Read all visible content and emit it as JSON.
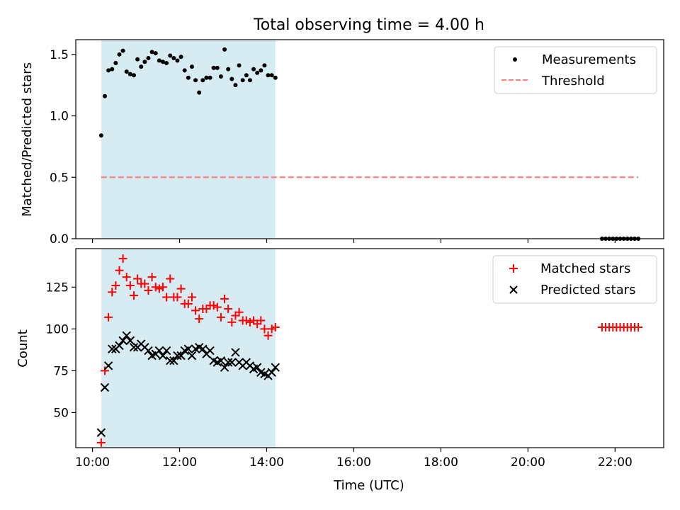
{
  "figure_title": "Total observing time = 4.00 h",
  "colors": {
    "span_fill": "#add8e6",
    "measurement": "#000000",
    "threshold": "#ff7f7f",
    "matched": "#ff0000",
    "predicted": "#000000"
  },
  "chart_data": [
    {
      "type": "scatter",
      "ylabel": "Matched/Predicted stars",
      "xlim": [
        "09:37",
        "23:07"
      ],
      "ylim": [
        0,
        1.62
      ],
      "yticks": [
        0.0,
        0.5,
        1.0,
        1.5
      ],
      "ytick_labels": [
        "0.0",
        "0.5",
        "1.0",
        "1.5"
      ],
      "xticks": [
        "10:00",
        "12:00",
        "14:00",
        "16:00",
        "18:00",
        "20:00",
        "22:00"
      ],
      "shaded_span": [
        "10:12",
        "14:12"
      ],
      "legend_position": "upper right",
      "legend": [
        "Measurements",
        "Threshold"
      ],
      "series": [
        {
          "name": "Measurements",
          "marker": "dot",
          "x": [
            "10:12",
            "10:17",
            "10:22",
            "10:27",
            "10:32",
            "10:37",
            "10:42",
            "10:47",
            "10:52",
            "10:57",
            "11:02",
            "11:07",
            "11:12",
            "11:17",
            "11:22",
            "11:27",
            "11:32",
            "11:37",
            "11:42",
            "11:47",
            "11:52",
            "11:57",
            "12:02",
            "12:07",
            "12:12",
            "12:17",
            "12:22",
            "12:27",
            "12:32",
            "12:37",
            "12:42",
            "12:47",
            "12:52",
            "12:57",
            "13:02",
            "13:07",
            "13:12",
            "13:17",
            "13:22",
            "13:27",
            "13:32",
            "13:37",
            "13:42",
            "13:47",
            "13:52",
            "13:57",
            "14:02",
            "14:07",
            "14:12",
            "21:42",
            "21:47",
            "21:52",
            "21:57",
            "22:02",
            "22:07",
            "22:12",
            "22:17",
            "22:22",
            "22:27",
            "22:32"
          ],
          "y": [
            0.84,
            1.16,
            1.37,
            1.38,
            1.43,
            1.5,
            1.53,
            1.36,
            1.34,
            1.33,
            1.46,
            1.4,
            1.44,
            1.47,
            1.52,
            1.51,
            1.45,
            1.44,
            1.43,
            1.49,
            1.47,
            1.45,
            1.48,
            1.37,
            1.31,
            1.4,
            1.29,
            1.19,
            1.29,
            1.31,
            1.31,
            1.39,
            1.39,
            1.32,
            1.54,
            1.38,
            1.3,
            1.25,
            1.41,
            1.29,
            1.33,
            1.29,
            1.38,
            1.35,
            1.37,
            1.41,
            1.33,
            1.33,
            1.31,
            0,
            0,
            0,
            0,
            0,
            0,
            0,
            0,
            0,
            0,
            0
          ]
        },
        {
          "name": "Threshold",
          "style": "dashed",
          "x": [
            "10:12",
            "22:32"
          ],
          "y": [
            0.5,
            0.5
          ]
        }
      ]
    },
    {
      "type": "scatter",
      "xlabel": "Time (UTC)",
      "ylabel": "Count",
      "xlim": [
        "09:37",
        "23:07"
      ],
      "ylim": [
        29,
        148
      ],
      "yticks": [
        50,
        75,
        100,
        125
      ],
      "ytick_labels": [
        "50",
        "75",
        "100",
        "125"
      ],
      "xticks": [
        "10:00",
        "12:00",
        "14:00",
        "16:00",
        "18:00",
        "20:00",
        "22:00"
      ],
      "shaded_span": [
        "10:12",
        "14:12"
      ],
      "legend_position": "upper right",
      "legend": [
        "Matched stars",
        "Predicted stars"
      ],
      "series": [
        {
          "name": "Matched stars",
          "marker": "plus",
          "x": [
            "10:12",
            "10:17",
            "10:22",
            "10:27",
            "10:32",
            "10:37",
            "10:42",
            "10:47",
            "10:52",
            "10:57",
            "11:02",
            "11:07",
            "11:12",
            "11:17",
            "11:22",
            "11:27",
            "11:32",
            "11:37",
            "11:42",
            "11:47",
            "11:52",
            "11:57",
            "12:02",
            "12:07",
            "12:12",
            "12:17",
            "12:22",
            "12:27",
            "12:32",
            "12:37",
            "12:42",
            "12:47",
            "12:52",
            "12:57",
            "13:02",
            "13:07",
            "13:12",
            "13:17",
            "13:22",
            "13:27",
            "13:32",
            "13:37",
            "13:42",
            "13:47",
            "13:52",
            "13:57",
            "14:02",
            "14:07",
            "14:12",
            "21:42",
            "21:47",
            "21:52",
            "21:57",
            "22:02",
            "22:07",
            "22:12",
            "22:17",
            "22:22",
            "22:27",
            "22:32"
          ],
          "y": [
            32,
            75,
            107,
            122,
            126,
            135,
            142,
            131,
            126,
            120,
            130,
            127,
            127,
            123,
            131,
            125,
            124,
            125,
            119,
            130,
            119,
            119,
            124,
            115,
            115,
            119,
            111,
            106,
            112,
            112,
            114,
            114,
            113,
            107,
            118,
            112,
            104,
            108,
            110,
            105,
            105,
            104,
            105,
            103,
            105,
            100,
            96,
            100,
            101,
            101,
            101,
            101,
            101,
            101,
            101,
            101,
            101,
            101,
            101,
            101
          ]
        },
        {
          "name": "Predicted stars",
          "marker": "x",
          "x": [
            "10:12",
            "10:17",
            "10:22",
            "10:27",
            "10:32",
            "10:37",
            "10:42",
            "10:47",
            "10:52",
            "10:57",
            "11:02",
            "11:07",
            "11:12",
            "11:17",
            "11:22",
            "11:27",
            "11:32",
            "11:37",
            "11:42",
            "11:47",
            "11:52",
            "11:57",
            "12:02",
            "12:07",
            "12:12",
            "12:17",
            "12:22",
            "12:27",
            "12:32",
            "12:37",
            "12:42",
            "12:47",
            "12:52",
            "12:57",
            "13:02",
            "13:07",
            "13:12",
            "13:17",
            "13:22",
            "13:27",
            "13:32",
            "13:37",
            "13:42",
            "13:47",
            "13:52",
            "13:57",
            "14:02",
            "14:07",
            "14:12"
          ],
          "y": [
            38,
            65,
            78,
            88,
            88,
            90,
            93,
            96,
            93,
            89,
            89,
            91,
            89,
            87,
            84,
            85,
            87,
            84,
            87,
            81,
            81,
            84,
            84,
            87,
            88,
            84,
            88,
            89,
            88,
            85,
            87,
            81,
            80,
            81,
            77,
            80,
            80,
            86,
            80,
            78,
            80,
            78,
            76,
            77,
            74,
            73,
            72,
            74,
            77
          ]
        }
      ]
    }
  ]
}
